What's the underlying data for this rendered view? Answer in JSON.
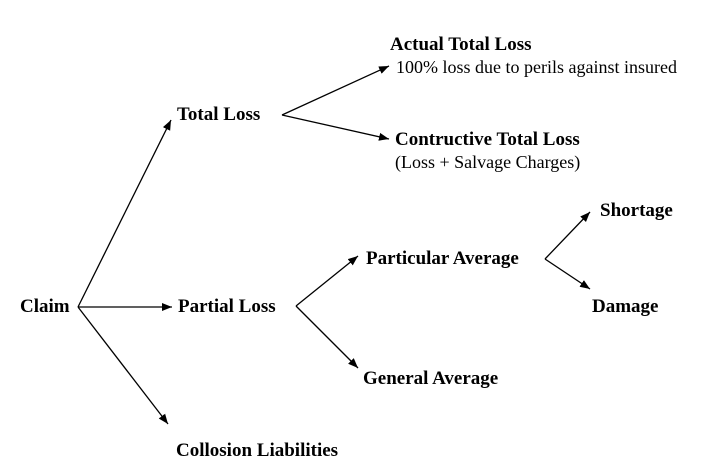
{
  "nodes": {
    "claim": "Claim",
    "total_loss": "Total Loss",
    "partial_loss": "Partial Loss",
    "collision_liabilities": "Collosion Liabilities",
    "actual_total_loss": "Actual Total Loss",
    "actual_total_loss_desc": "100% loss due to perils against insured",
    "constructive_total_loss": "Contructive Total Loss",
    "constructive_total_loss_desc": "(Loss + Salvage Charges)",
    "particular_average": "Particular Average",
    "general_average": "General Average",
    "shortage": "Shortage",
    "damage": "Damage"
  },
  "colors": {
    "text": "#000000",
    "line": "#000000",
    "background": "#ffffff"
  }
}
